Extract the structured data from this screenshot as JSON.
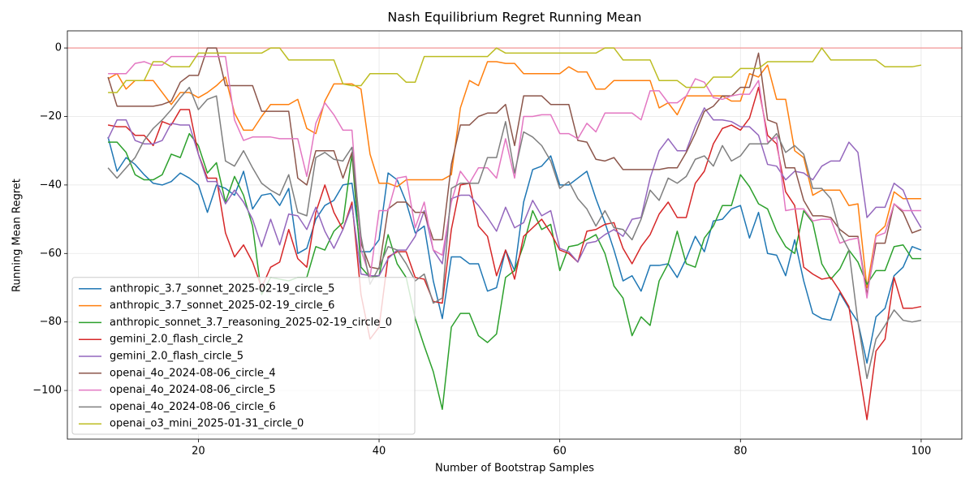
{
  "chart_data": {
    "type": "line",
    "title": "Nash Equilibrium Regret Running Mean",
    "x_label": "Number of Bootstrap Samples",
    "y_label": "Running Mean Regret",
    "x": [
      10,
      11,
      12,
      13,
      14,
      15,
      16,
      17,
      18,
      19,
      20,
      21,
      22,
      23,
      24,
      25,
      26,
      27,
      28,
      29,
      30,
      31,
      32,
      33,
      34,
      35,
      36,
      37,
      38,
      39,
      40,
      41,
      42,
      43,
      44,
      45,
      46,
      47,
      48,
      49,
      50,
      51,
      52,
      53,
      54,
      55,
      56,
      57,
      58,
      59,
      60,
      61,
      62,
      63,
      64,
      65,
      66,
      67,
      68,
      69,
      70,
      71,
      72,
      73,
      74,
      75,
      76,
      77,
      78,
      79,
      80,
      81,
      82,
      83,
      84,
      85,
      86,
      87,
      88,
      89,
      90,
      91,
      92,
      93,
      94,
      95,
      96,
      97,
      98,
      99,
      100
    ],
    "xlim": [
      5.5,
      104.5
    ],
    "ylim": [
      -114.2,
      5
    ],
    "xticks": [
      20,
      40,
      60,
      80,
      100
    ],
    "yticks": [
      0,
      {
        "value": -20,
        "label": "−20"
      },
      {
        "value": -40,
        "label": "−40"
      },
      {
        "value": -60,
        "label": "−60"
      },
      {
        "value": -80,
        "label": "−80"
      },
      {
        "value": -100,
        "label": "−100"
      }
    ],
    "grid": true,
    "legend": "lower left",
    "reference_line": {
      "value": 0,
      "color": "#f4a6a6"
    },
    "series": [
      {
        "name": "anthropic_3.7_sonnet_2025-02-19_circle_5",
        "color": "#1f77b4",
        "values": [
          -26,
          -36,
          -32,
          -34,
          -37,
          -39.5,
          -40,
          -39,
          -36.5,
          -38,
          -40,
          -48,
          -40,
          -41,
          -43,
          -36,
          -47,
          -43,
          -42.5,
          -46,
          -41,
          -60,
          -58.5,
          -50,
          -46,
          -44.5,
          -40,
          -39.5,
          -59.5,
          -59.5,
          -56,
          -36.5,
          -38.5,
          -45,
          -54,
          -52,
          -68,
          -79,
          -61,
          -61,
          -63,
          -63,
          -71,
          -70,
          -59,
          -65,
          -45,
          -35.5,
          -34.5,
          -31.5,
          -40,
          -40,
          -38,
          -36,
          -44,
          -51,
          -59,
          -68,
          -66.5,
          -71,
          -63.5,
          -63.5,
          -63,
          -67,
          -61.5,
          -55,
          -59.5,
          -50.5,
          -50,
          -47,
          -46,
          -55.5,
          -48,
          -60,
          -60.5,
          -66.5,
          -56,
          -68,
          -77.5,
          -79,
          -79.5,
          -71.5,
          -76,
          -80,
          -92,
          -78.5,
          -76,
          -66.5,
          -64,
          -58,
          -59
        ]
      },
      {
        "name": "anthropic_3.7_sonnet_2025-02-19_circle_6",
        "color": "#ff7f0e",
        "values": [
          -9,
          -7.5,
          -12,
          -9.5,
          -9.5,
          -9.5,
          -13,
          -16.5,
          -13,
          -13,
          -14.5,
          -13,
          -11,
          -8.5,
          -19,
          -24,
          -24,
          -20,
          -16.5,
          -16.5,
          -16.5,
          -15,
          -23.5,
          -25,
          -15.5,
          -10.5,
          -10.5,
          -10.5,
          -12,
          -31,
          -39.5,
          -39.5,
          -40.5,
          -38.5,
          -38.5,
          -38.5,
          -38.5,
          -38.5,
          -37,
          -17.5,
          -9.5,
          -11,
          -4,
          -4,
          -4.5,
          -4.5,
          -7.5,
          -7.5,
          -7.5,
          -7.5,
          -7.5,
          -5.5,
          -7,
          -7,
          -12,
          -12,
          -9.5,
          -9.5,
          -9.5,
          -9.5,
          -9.5,
          -17.5,
          -16,
          -19.5,
          -14,
          -14,
          -14,
          -14,
          -14,
          -15.5,
          -15.5,
          -7.5,
          -8.5,
          -5,
          -15,
          -15,
          -30,
          -32,
          -43,
          -41.5,
          -41.5,
          -41.5,
          -46,
          -45.5,
          -70,
          -54.5,
          -52,
          -42,
          -44,
          -44,
          -44
        ]
      },
      {
        "name": "anthropic_sonnet_3.7_reasoning_2025-02-19_circle_0",
        "color": "#2ca02c",
        "values": [
          -27.5,
          -27.5,
          -30.5,
          -37,
          -38.5,
          -38.5,
          -37,
          -31,
          -32,
          -25,
          -28.5,
          -36.5,
          -33.5,
          -45,
          -37.5,
          -43,
          -52,
          -72,
          -67,
          -67.5,
          -68,
          -67,
          -67,
          -58,
          -59,
          -53.5,
          -51,
          -31,
          -64,
          -67,
          -66.5,
          -54.5,
          -63,
          -67,
          -79,
          -87,
          -94.5,
          -105.5,
          -81.5,
          -77.5,
          -77.5,
          -84,
          -86,
          -83.5,
          -67,
          -65,
          -57.5,
          -47.5,
          -53,
          -51.5,
          -65,
          -58,
          -57.5,
          -56,
          -54.5,
          -60,
          -69.5,
          -73,
          -84,
          -78.5,
          -81,
          -68,
          -63,
          -53.5,
          -63,
          -64,
          -55.5,
          -52,
          -46,
          -46,
          -37,
          -40.5,
          -45.5,
          -47,
          -53.5,
          -58,
          -60,
          -47.5,
          -51,
          -63,
          -67.5,
          -64.5,
          -59,
          -62.5,
          -69,
          -65,
          -65,
          -58,
          -57.5,
          -61.5,
          -61.5
        ]
      },
      {
        "name": "gemini_2.0_flash_circle_2",
        "color": "#d62728",
        "values": [
          -22.5,
          -23,
          -23,
          -25.5,
          -25.5,
          -28.5,
          -21.5,
          -22.5,
          -18,
          -18,
          -31,
          -38,
          -38,
          -54,
          -61,
          -57.5,
          -62.5,
          -70,
          -64,
          -62.5,
          -53,
          -61.5,
          -64,
          -48,
          -40,
          -48,
          -53,
          -45,
          -72,
          -85,
          -81.5,
          -61,
          -59.5,
          -59.5,
          -67,
          -67.5,
          -74,
          -74.5,
          -53,
          -40,
          -39.5,
          -52,
          -55,
          -66.5,
          -59,
          -67.5,
          -55,
          -52.5,
          -50,
          -54,
          -59,
          -60,
          -62.5,
          -53.5,
          -53,
          -51.5,
          -51,
          -58.5,
          -63,
          -58,
          -54.5,
          -48.5,
          -45,
          -49.5,
          -49.5,
          -39.5,
          -36,
          -28,
          -23.5,
          -22.5,
          -24,
          -20.5,
          -11.5,
          -25.5,
          -28,
          -42,
          -46,
          -64,
          -66,
          -67.5,
          -67,
          -71,
          -75.5,
          -92,
          -108.5,
          -88.5,
          -85,
          -67,
          -76,
          -76,
          -75.5
        ]
      },
      {
        "name": "gemini_2.0_flash_circle_5",
        "color": "#9467bd",
        "values": [
          -26.5,
          -21,
          -21,
          -27,
          -28,
          -28,
          -27,
          -22,
          -22.5,
          -22.5,
          -31,
          -39,
          -39,
          -45.5,
          -41.5,
          -45,
          -50,
          -58,
          -50,
          -57.5,
          -48.5,
          -49,
          -53,
          -46.5,
          -53.5,
          -58.5,
          -53,
          -46,
          -66,
          -66.5,
          -66.5,
          -61.5,
          -59,
          -59,
          -55,
          -47.5,
          -59,
          -63,
          -44,
          -43,
          -43,
          -46,
          -49.5,
          -53.5,
          -46.5,
          -52.5,
          -51,
          -44.5,
          -49,
          -47.5,
          -58.5,
          -59.5,
          -62.5,
          -57,
          -56.5,
          -54.5,
          -53,
          -55,
          -50,
          -49.5,
          -38,
          -30,
          -26.5,
          -30,
          -30,
          -23,
          -17.5,
          -21,
          -21,
          -21.5,
          -23,
          -23,
          -25.5,
          -34,
          -34.5,
          -38.5,
          -36,
          -36.5,
          -38.5,
          -34.5,
          -33,
          -33,
          -27.5,
          -30.5,
          -49.5,
          -46.5,
          -46.5,
          -39.5,
          -41.5,
          -48,
          -52.5
        ]
      },
      {
        "name": "openai_4o_2024-08-06_circle_4",
        "color": "#8c564b",
        "values": [
          -8.5,
          -17,
          -17,
          -17,
          -17,
          -17,
          -16.5,
          -15.5,
          -10,
          -8,
          -8,
          0,
          0,
          -11,
          -11,
          -11,
          -11,
          -18.5,
          -18.5,
          -18.5,
          -18.5,
          -38,
          -40,
          -30,
          -30,
          -30,
          -38,
          -30.5,
          -57,
          -64,
          -64.5,
          -47,
          -45,
          -45,
          -48,
          -48,
          -56,
          -56,
          -34,
          -22.5,
          -22.5,
          -20,
          -19,
          -19,
          -16.5,
          -28.5,
          -14,
          -14,
          -14,
          -16.5,
          -16.5,
          -16.5,
          -27,
          -27.5,
          -32.5,
          -33,
          -32,
          -35.5,
          -35.5,
          -35.5,
          -35.5,
          -35.5,
          -35,
          -35,
          -30.5,
          -25,
          -18.5,
          -17,
          -14,
          -14,
          -11.5,
          -11.5,
          -1.5,
          -21,
          -22,
          -35,
          -35,
          -44.5,
          -49,
          -49,
          -49.5,
          -53,
          -55,
          -55,
          -72,
          -57,
          -57,
          -45.5,
          -48,
          -54,
          -53
        ]
      },
      {
        "name": "openai_4o_2024-08-06_circle_5",
        "color": "#e377c2",
        "values": [
          -7.5,
          -7.5,
          -7.5,
          -4.5,
          -4,
          -5,
          -5,
          -2.5,
          -2.5,
          -2.5,
          -2.5,
          -2.5,
          -2.5,
          -2.5,
          -21,
          -27,
          -26,
          -26,
          -26,
          -26.5,
          -26.5,
          -26.5,
          -37.5,
          -22,
          -16,
          -19.5,
          -24,
          -24,
          -59,
          -67,
          -47.5,
          -47.5,
          -38,
          -37.5,
          -52.5,
          -45,
          -59,
          -60.5,
          -45,
          -36,
          -39.5,
          -35,
          -35,
          -38,
          -26.5,
          -38,
          -20,
          -20,
          -19.5,
          -19.5,
          -25,
          -25,
          -26.5,
          -22,
          -24.5,
          -19,
          -19,
          -19,
          -19,
          -21,
          -12.5,
          -12.5,
          -16,
          -16,
          -14,
          -9,
          -10,
          -14.5,
          -15,
          -14,
          -13.5,
          -13.5,
          -9.5,
          -27.5,
          -26,
          -47.5,
          -47,
          -47,
          -50.5,
          -50,
          -50,
          -57,
          -56,
          -55.5,
          -73,
          -55,
          -54,
          -45.5,
          -47.5,
          -47.5,
          -47.5
        ]
      },
      {
        "name": "openai_4o_2024-08-06_circle_6",
        "color": "#7f7f7f",
        "values": [
          -35,
          -38,
          -35,
          -32,
          -27,
          -23.5,
          -21,
          -18,
          -14.5,
          -11.5,
          -18,
          -15,
          -14,
          -33,
          -34.5,
          -30,
          -35,
          -39.5,
          -41.5,
          -43,
          -37,
          -48,
          -49,
          -32,
          -30.5,
          -32.5,
          -33,
          -29,
          -55,
          -69,
          -64,
          -58,
          -59,
          -63,
          -68,
          -66,
          -74.5,
          -73,
          -41,
          -39.5,
          -39.5,
          -39.5,
          -32,
          -32,
          -21.5,
          -36.5,
          -24.5,
          -26,
          -28.5,
          -33,
          -41,
          -39,
          -44,
          -47,
          -52,
          -47.5,
          -52.5,
          -53,
          -56,
          -50,
          -41.5,
          -44.5,
          -38,
          -39.5,
          -37.5,
          -32.5,
          -31.5,
          -34.5,
          -28.5,
          -33,
          -31.5,
          -28,
          -28,
          -28,
          -25,
          -30.5,
          -28.5,
          -31,
          -41,
          -41,
          -44,
          -54,
          -59,
          -80,
          -96.5,
          -85,
          -81,
          -76.5,
          -79.5,
          -80,
          -79.5
        ]
      },
      {
        "name": "openai_o3_mini_2025-01-31_circle_0",
        "color": "#bcbd22",
        "values": [
          -13,
          -13,
          -9.5,
          -9.5,
          -9.5,
          -4,
          -4,
          -5.5,
          -5.5,
          -5.5,
          -1.5,
          -1.5,
          -1.5,
          -1.5,
          -1.5,
          -1.5,
          -1.5,
          -1.5,
          0,
          0,
          -3.5,
          -3.5,
          -3.5,
          -3.5,
          -3.5,
          -3.5,
          -10.5,
          -11,
          -11,
          -7.5,
          -7.5,
          -7.5,
          -7.5,
          -10,
          -10,
          -2.5,
          -2.5,
          -2.5,
          -2.5,
          -2.5,
          -2.5,
          -2.5,
          -2.5,
          0,
          -1.5,
          -1.5,
          -1.5,
          -1.5,
          -1.5,
          -1.5,
          -1.5,
          -1.5,
          -1.5,
          -1.5,
          -1.5,
          0,
          0,
          -3.5,
          -3.5,
          -3.5,
          -3.5,
          -9.5,
          -9.5,
          -9.5,
          -11.5,
          -11.5,
          -11.5,
          -8.5,
          -8.5,
          -8.5,
          -6,
          -6,
          -6,
          -4,
          -4,
          -4,
          -4,
          -4,
          -4,
          0,
          -3.5,
          -3.5,
          -3.5,
          -3.5,
          -3.5,
          -3.5,
          -5.5,
          -5.5,
          -5.5,
          -5.5,
          -5
        ]
      }
    ]
  }
}
